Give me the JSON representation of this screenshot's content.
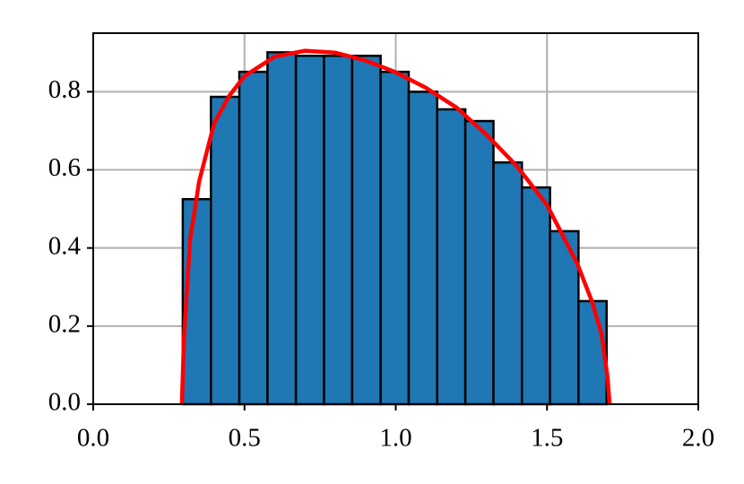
{
  "chart_data": {
    "type": "histogram",
    "bins": [
      0.296,
      0.389,
      0.483,
      0.576,
      0.67,
      0.763,
      0.856,
      0.95,
      1.043,
      1.137,
      1.23,
      1.323,
      1.417,
      1.51,
      1.604,
      1.697
    ],
    "values": [
      0.525,
      0.787,
      0.851,
      0.901,
      0.892,
      0.892,
      0.892,
      0.851,
      0.8,
      0.755,
      0.725,
      0.619,
      0.555,
      0.443,
      0.264
    ],
    "color": "#1f77b4",
    "edgecolor": "#000000",
    "curve": {
      "x": [
        0.293,
        0.3,
        0.32,
        0.35,
        0.4,
        0.45,
        0.5,
        0.6,
        0.7,
        0.8,
        0.9,
        1.0,
        1.1,
        1.2,
        1.3,
        1.4,
        1.5,
        1.6,
        1.65,
        1.68,
        1.7,
        1.707
      ],
      "y": [
        0,
        0.17,
        0.42,
        0.57,
        0.72,
        0.79,
        0.84,
        0.89,
        0.905,
        0.9,
        0.88,
        0.85,
        0.81,
        0.76,
        0.69,
        0.61,
        0.51,
        0.36,
        0.26,
        0.18,
        0.07,
        0
      ],
      "color": "#ff0000"
    },
    "xlim": [
      0,
      2
    ],
    "ylim": [
      0,
      0.95
    ],
    "xticks": [
      {
        "value": 0,
        "label": "0.0"
      },
      0.5,
      {
        "value": 1,
        "label": "1.0"
      },
      1.5,
      {
        "value": 2,
        "label": "2.0"
      }
    ],
    "yticks": [
      {
        "value": 0,
        "label": "0.0"
      },
      0.2,
      0.4,
      0.6,
      0.8
    ],
    "grid": true
  }
}
